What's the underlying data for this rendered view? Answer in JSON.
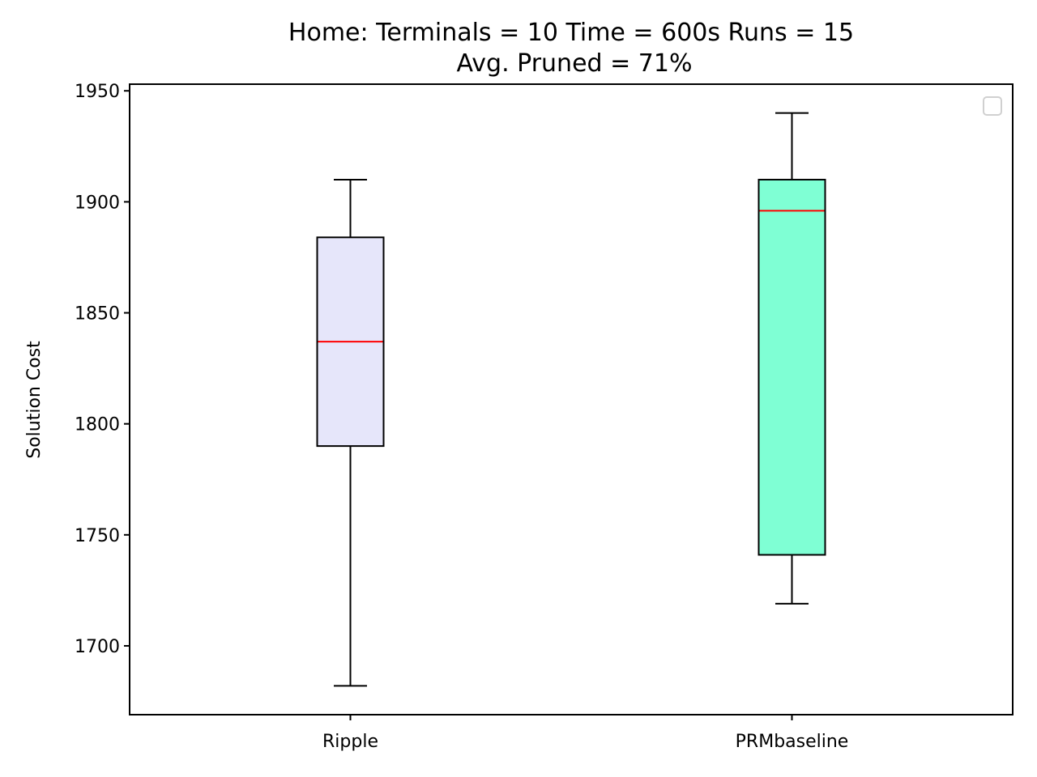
{
  "chart_data": {
    "type": "box",
    "title_lines": [
      "Home:  Terminals = 10  Time = 600s  Runs = 15",
      "Avg. Pruned = 71%"
    ],
    "xlabel": "",
    "ylabel": "Solution Cost",
    "ylim": [
      1669,
      1953
    ],
    "yticks": [
      1700,
      1750,
      1800,
      1850,
      1900,
      1950
    ],
    "categories": [
      "Ripple",
      "PRMbaseline"
    ],
    "boxes": [
      {
        "name": "Ripple",
        "whisker_low": 1682,
        "q1": 1790,
        "median": 1837,
        "q3": 1884,
        "whisker_high": 1910,
        "fill": "#e6e6fa"
      },
      {
        "name": "PRMbaseline",
        "whisker_low": 1719,
        "q1": 1741,
        "median": 1896,
        "q3": 1910,
        "whisker_high": 1940,
        "fill": "#7fffd4"
      }
    ],
    "median_color": "#ff0000",
    "grid": false,
    "legend": {
      "location": "top-right",
      "entries": []
    }
  }
}
